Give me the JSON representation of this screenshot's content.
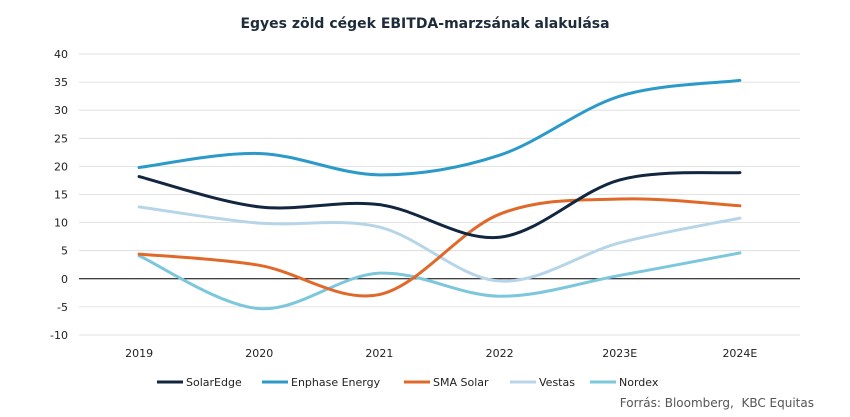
{
  "chart_data": {
    "type": "line",
    "title": "Egyes zöld cégek EBITDA-marzsának alakulása",
    "categories": [
      "2019",
      "2020",
      "2021",
      "2022",
      "2023E",
      "2024E"
    ],
    "ylim": [
      -10,
      40
    ],
    "yticks": [
      -10,
      -5,
      0,
      5,
      10,
      15,
      20,
      25,
      30,
      35,
      40
    ],
    "grid": true,
    "legend_position": "bottom",
    "series": [
      {
        "name": "SolarEdge",
        "color": "#12263f",
        "values": [
          18.2,
          12.8,
          13.2,
          7.4,
          17.6,
          18.9
        ]
      },
      {
        "name": "Enphase Energy",
        "color": "#2b9ac9",
        "values": [
          19.8,
          22.3,
          18.5,
          22.0,
          32.5,
          35.3
        ]
      },
      {
        "name": "SMA Solar",
        "color": "#e0692a",
        "values": [
          4.4,
          2.4,
          -2.8,
          11.5,
          14.2,
          13.0
        ]
      },
      {
        "name": "Vestas",
        "color": "#b7d5e8",
        "values": [
          12.8,
          9.9,
          9.2,
          -0.4,
          6.4,
          10.8
        ]
      },
      {
        "name": "Nordex",
        "color": "#7cc7dc",
        "values": [
          4.1,
          -5.3,
          1.0,
          -3.1,
          0.6,
          4.6
        ]
      }
    ]
  },
  "source": "Forrás: Bloomberg,  KBC Equitas"
}
